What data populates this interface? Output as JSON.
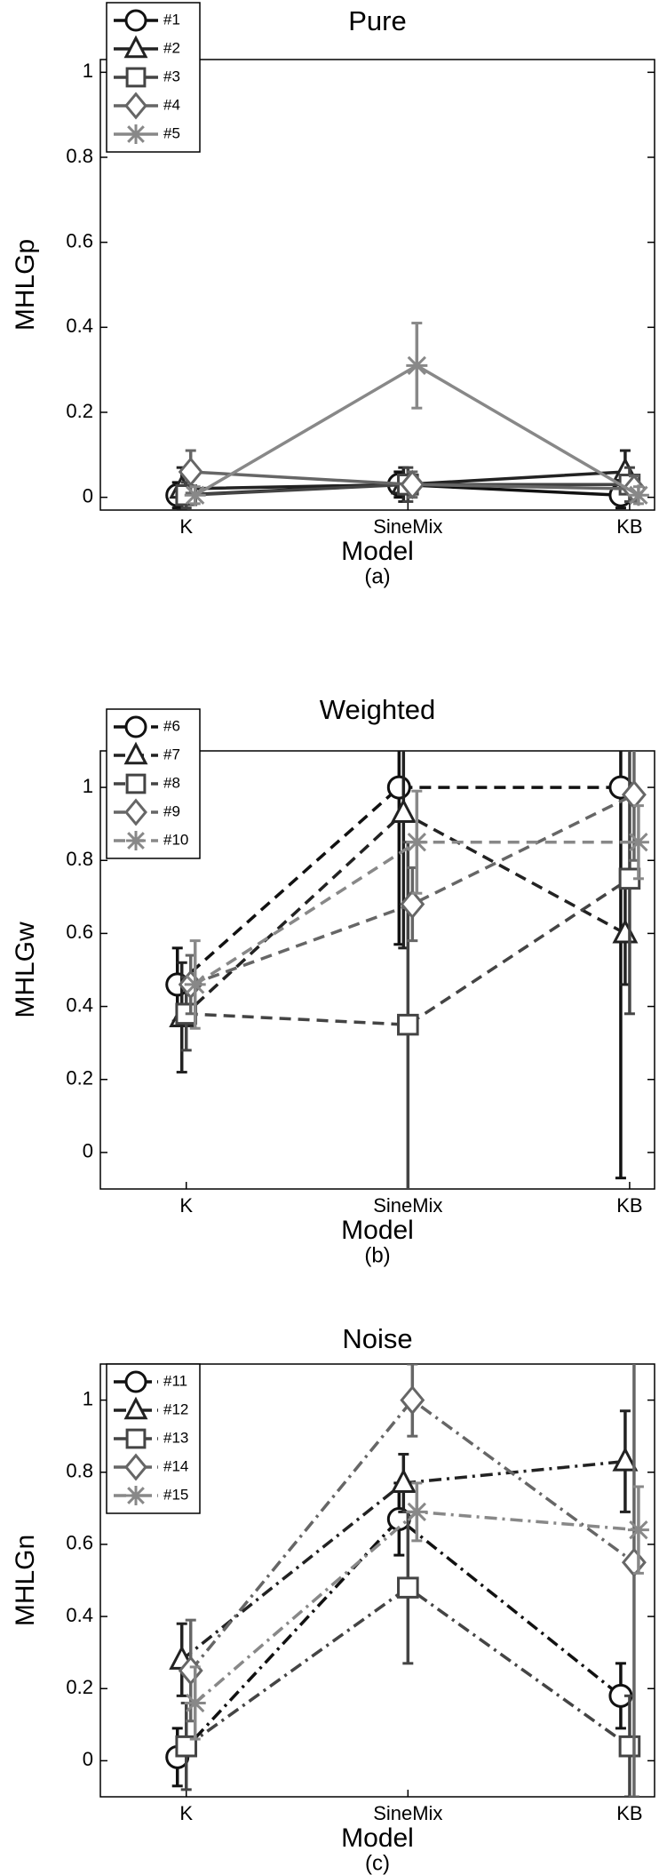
{
  "chart_data": [
    {
      "type": "line",
      "title": "Pure",
      "xlabel": "Model",
      "ylabel": "MHLGp",
      "caption": "(a)",
      "categories": [
        "K",
        "SineMix",
        "KB"
      ],
      "ylim": [
        -0.03,
        1.03
      ],
      "yticks": [
        0,
        0.2,
        0.4,
        0.6,
        0.8,
        1
      ],
      "legend": "upper left",
      "linestyle": "solid",
      "series": [
        {
          "name": "#1",
          "color": "#111111",
          "marker": "circle",
          "values": [
            0.005,
            0.03,
            0.005
          ],
          "errors": [
            0.03,
            0.03,
            0.03
          ]
        },
        {
          "name": "#2",
          "color": "#222222",
          "marker": "triangle",
          "values": [
            0.02,
            0.03,
            0.06
          ],
          "errors": [
            0.05,
            0.04,
            0.05
          ]
        },
        {
          "name": "#3",
          "color": "#444444",
          "marker": "square",
          "values": [
            0.005,
            0.03,
            0.03
          ],
          "errors": [
            0.03,
            0.04,
            0.04
          ]
        },
        {
          "name": "#4",
          "color": "#666666",
          "marker": "diamond",
          "values": [
            0.06,
            0.03,
            0.02
          ],
          "errors": [
            0.05,
            0.03,
            0.03
          ]
        },
        {
          "name": "#5",
          "color": "#888888",
          "marker": "star",
          "values": [
            0.005,
            0.31,
            0.005
          ],
          "errors": [
            0.02,
            0.1,
            0.02
          ]
        }
      ]
    },
    {
      "type": "line",
      "title": "Weighted",
      "xlabel": "Model",
      "ylabel": "MHLGw",
      "caption": "(b)",
      "categories": [
        "K",
        "SineMix",
        "KB"
      ],
      "ylim": [
        -0.1,
        1.1
      ],
      "yticks": [
        0,
        0.2,
        0.4,
        0.6,
        0.8,
        1
      ],
      "legend": "upper left",
      "linestyle": "dashed",
      "series": [
        {
          "name": "#6",
          "color": "#111111",
          "marker": "circle",
          "values": [
            0.46,
            1.0,
            1.0
          ],
          "errors": [
            0.1,
            0.43,
            1.07
          ]
        },
        {
          "name": "#7",
          "color": "#222222",
          "marker": "triangle",
          "values": [
            0.37,
            0.93,
            0.6
          ],
          "errors": [
            0.15,
            0.37,
            0.14
          ]
        },
        {
          "name": "#8",
          "color": "#444444",
          "marker": "square",
          "values": [
            0.38,
            0.35,
            0.75
          ],
          "errors": [
            0.1,
            0.5,
            0.37
          ]
        },
        {
          "name": "#9",
          "color": "#666666",
          "marker": "diamond",
          "values": [
            0.46,
            0.68,
            0.98
          ],
          "errors": [
            0.08,
            0.1,
            0.18
          ]
        },
        {
          "name": "#10",
          "color": "#888888",
          "marker": "star",
          "values": [
            0.46,
            0.85,
            0.85
          ],
          "errors": [
            0.12,
            0.14,
            0.1
          ]
        }
      ]
    },
    {
      "type": "line",
      "title": "Noise",
      "xlabel": "Model",
      "ylabel": "MHLGn",
      "caption": "(c)",
      "categories": [
        "K",
        "SineMix",
        "KB"
      ],
      "ylim": [
        -0.1,
        1.1
      ],
      "yticks": [
        0,
        0.2,
        0.4,
        0.6,
        0.8,
        1
      ],
      "legend": "upper left",
      "linestyle": "dashdot",
      "series": [
        {
          "name": "#11",
          "color": "#111111",
          "marker": "circle",
          "values": [
            0.01,
            0.67,
            0.18
          ],
          "errors": [
            0.08,
            0.1,
            0.09
          ]
        },
        {
          "name": "#12",
          "color": "#222222",
          "marker": "triangle",
          "values": [
            0.28,
            0.77,
            0.83
          ],
          "errors": [
            0.1,
            0.08,
            0.14
          ]
        },
        {
          "name": "#13",
          "color": "#444444",
          "marker": "square",
          "values": [
            0.04,
            0.48,
            0.04
          ],
          "errors": [
            0.12,
            0.21,
            0.14
          ]
        },
        {
          "name": "#14",
          "color": "#666666",
          "marker": "diamond",
          "values": [
            0.25,
            1.0,
            0.55
          ],
          "errors": [
            0.14,
            0.1,
            0.65
          ]
        },
        {
          "name": "#15",
          "color": "#888888",
          "marker": "star",
          "values": [
            0.16,
            0.69,
            0.64
          ],
          "errors": [
            0.1,
            0.08,
            0.12
          ]
        }
      ]
    }
  ]
}
